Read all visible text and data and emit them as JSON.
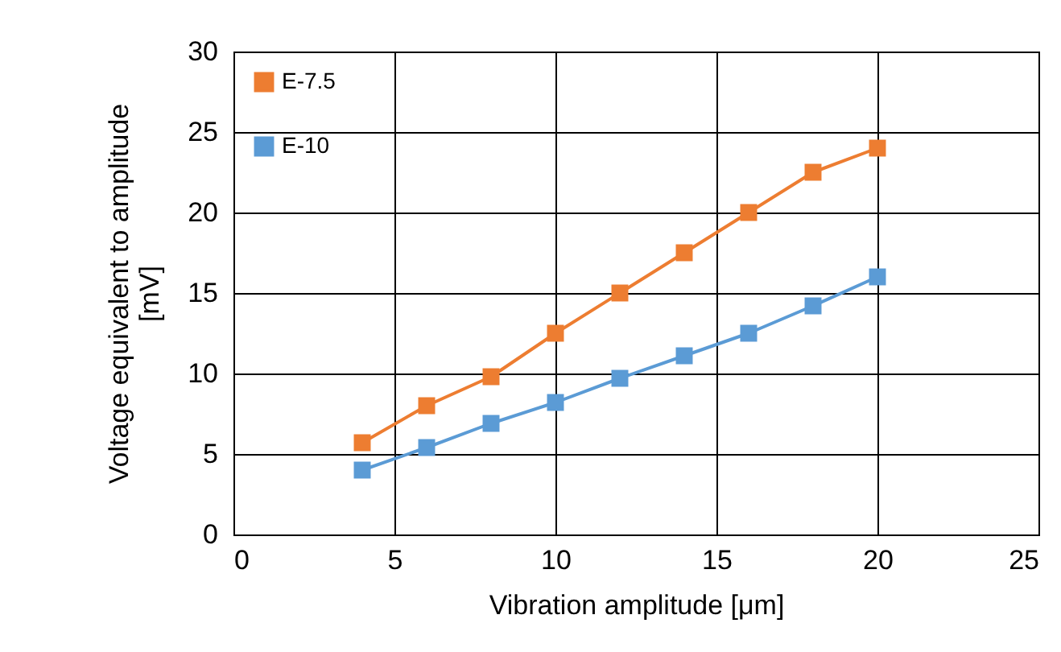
{
  "chart_data": {
    "type": "line",
    "xlabel": "Vibration amplitude [μm]",
    "ylabel": "Voltage equivalent to amplitude [mV]",
    "x": [
      4,
      6,
      8,
      10,
      12,
      14,
      16,
      18,
      20
    ],
    "series": [
      {
        "name": "E-7.5",
        "color": "#ed7d31",
        "values": [
          5.7,
          8.0,
          9.8,
          12.5,
          15.0,
          17.5,
          20.0,
          22.5,
          24.0
        ]
      },
      {
        "name": "E-10",
        "color": "#5b9bd5",
        "values": [
          4.0,
          5.4,
          6.9,
          8.2,
          9.7,
          11.1,
          12.5,
          14.2,
          16.0
        ]
      }
    ],
    "xlim": [
      0,
      25
    ],
    "xticks": [
      0,
      5,
      10,
      15,
      20,
      25
    ],
    "ylim": [
      0,
      30
    ],
    "yticks": [
      0,
      5,
      10,
      15,
      20,
      25,
      30
    ],
    "grid": true,
    "legend": "top left",
    "marker": "square",
    "line_style": "solid"
  }
}
